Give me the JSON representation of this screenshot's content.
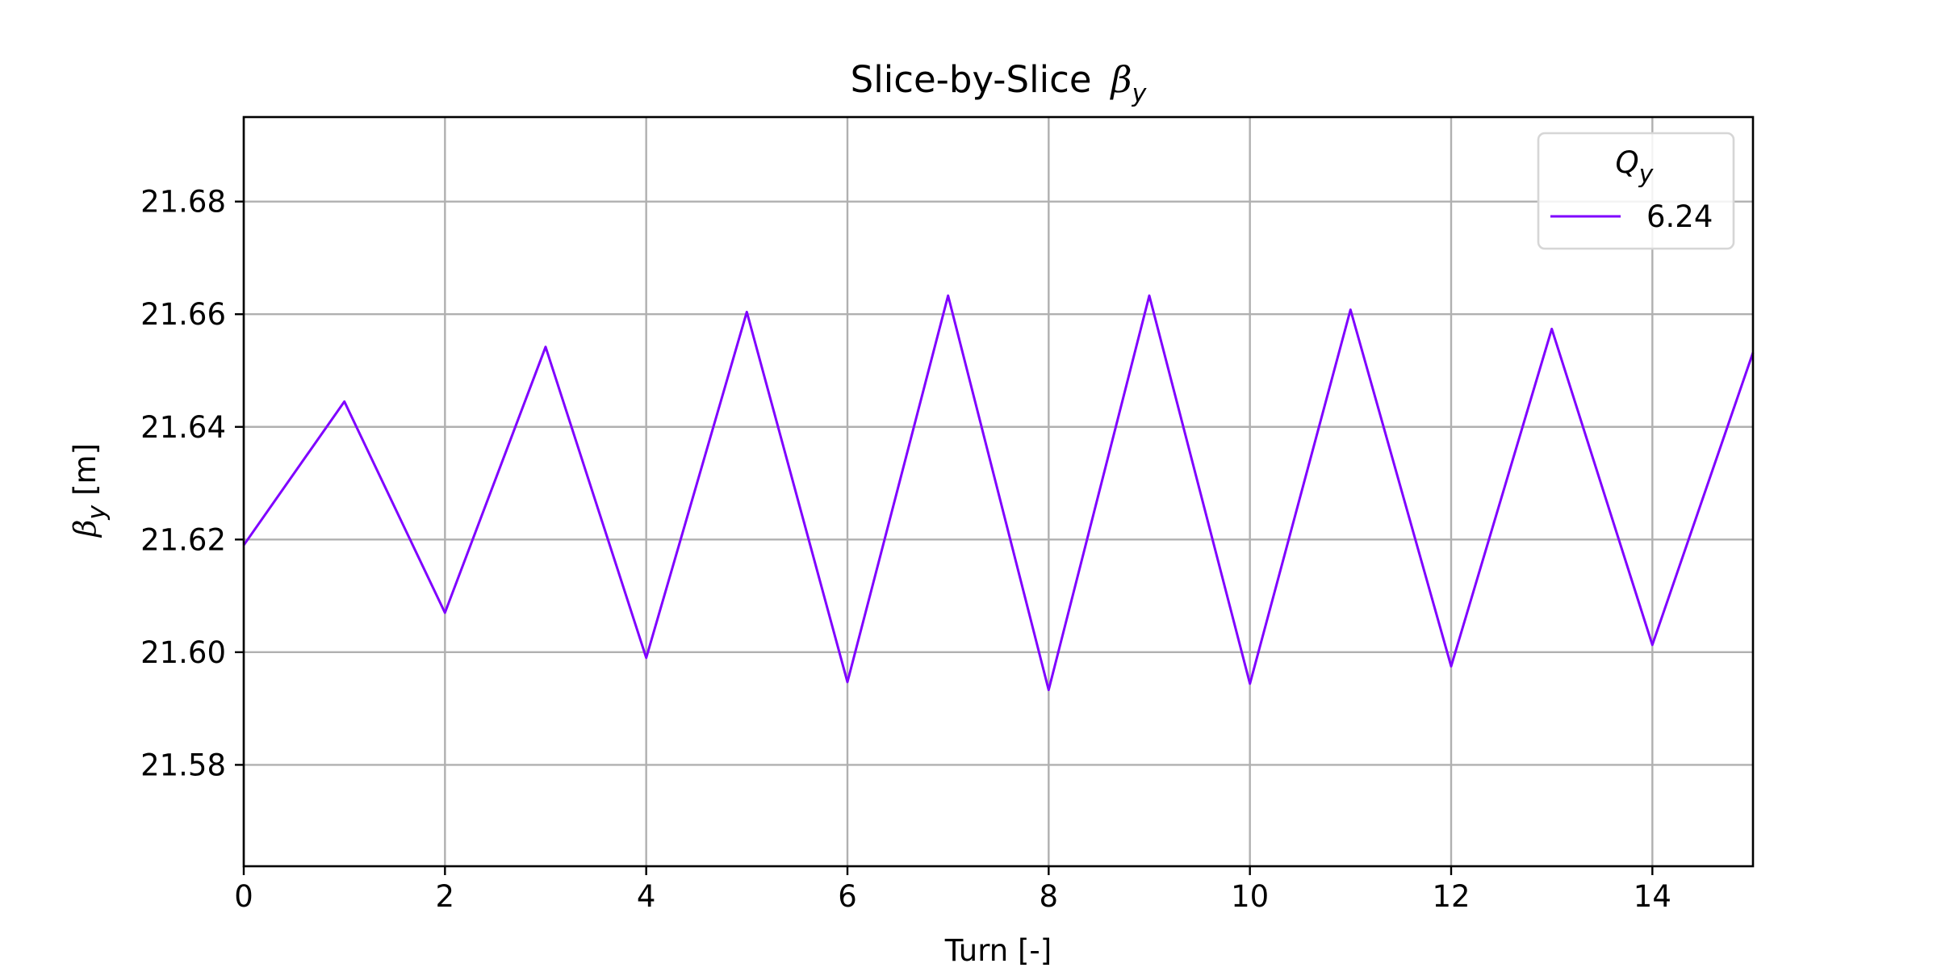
{
  "chart_data": {
    "type": "line",
    "title": "Slice-by-Slice",
    "title_symbol": "β",
    "title_symbol_sub": "y",
    "xlabel": "Turn [-]",
    "ylabel_symbol": "β",
    "ylabel_symbol_sub": "y",
    "ylabel_unit": "[m]",
    "xlim": [
      0,
      15
    ],
    "ylim": [
      21.562,
      21.695
    ],
    "xticks": [
      0,
      2,
      4,
      6,
      8,
      10,
      12,
      14
    ],
    "xtick_labels": [
      "0",
      "2",
      "4",
      "6",
      "8",
      "10",
      "12",
      "14"
    ],
    "yticks": [
      21.58,
      21.6,
      21.62,
      21.64,
      21.66,
      21.68
    ],
    "ytick_labels": [
      "21.58",
      "21.60",
      "21.62",
      "21.64",
      "21.66",
      "21.68"
    ],
    "grid": true,
    "legend": {
      "position": "top-right",
      "title_symbol": "Q",
      "title_symbol_sub": "y"
    },
    "series": [
      {
        "name": "6.24",
        "color": "#7f00ff",
        "x": [
          0,
          1,
          2,
          3,
          4,
          5,
          6,
          7,
          8,
          9,
          10,
          11,
          12,
          13,
          14,
          15
        ],
        "y": [
          21.619,
          21.6445,
          21.607,
          21.6542,
          21.599,
          21.6604,
          21.5947,
          21.6633,
          21.5933,
          21.6633,
          21.5944,
          21.6608,
          21.5975,
          21.6574,
          21.6013,
          21.6532
        ]
      }
    ]
  }
}
